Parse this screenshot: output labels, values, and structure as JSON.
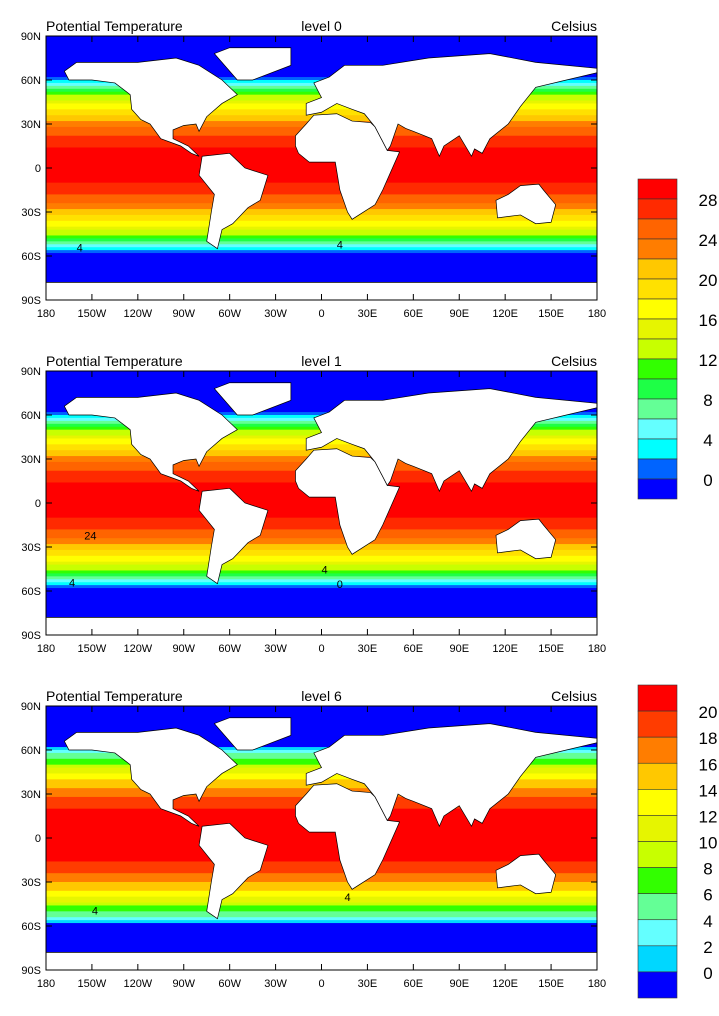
{
  "panels": [
    {
      "left_title": "Potential Temperature",
      "center_title": "level 0",
      "right_title": "Celsius",
      "colorbar": "top",
      "scale": 1.0,
      "contour_labels": [
        "4",
        "4"
      ]
    },
    {
      "left_title": "Potential Temperature",
      "center_title": "level 1",
      "right_title": "Celsius",
      "colorbar": "none",
      "scale": 1.0,
      "contour_labels": [
        "24",
        "4",
        "4",
        "0"
      ]
    },
    {
      "left_title": "Potential Temperature",
      "center_title": "level 6",
      "right_title": "Celsius",
      "colorbar": "bottom",
      "scale": 0.75,
      "contour_labels": [
        "4",
        "4"
      ]
    }
  ],
  "lat_ticks": [
    "90N",
    "60N",
    "30N",
    "0",
    "30S",
    "60S",
    "90S"
  ],
  "lon_ticks": [
    "180",
    "150W",
    "120W",
    "90W",
    "60W",
    "30W",
    "0",
    "30E",
    "60E",
    "90E",
    "120E",
    "150E",
    "180"
  ],
  "colorbar_top": {
    "labels": [
      "28",
      "24",
      "20",
      "16",
      "12",
      "8",
      "4",
      "0"
    ],
    "colors": [
      "#ff0000",
      "#ff2a00",
      "#ff6400",
      "#ff7d00",
      "#ffc800",
      "#ffe100",
      "#ffff00",
      "#e6f500",
      "#c8ff00",
      "#32ff00",
      "#1eff46",
      "#64ff96",
      "#64ffff",
      "#00ffff",
      "#0064ff",
      "#0000ff"
    ]
  },
  "colorbar_bottom": {
    "labels": [
      "20",
      "18",
      "16",
      "14",
      "12",
      "10",
      "8",
      "6",
      "4",
      "2",
      "0"
    ],
    "colors": [
      "#ff0000",
      "#ff3c00",
      "#ff7d00",
      "#ffc800",
      "#ffff00",
      "#e6f500",
      "#c8ff00",
      "#32ff00",
      "#64ff96",
      "#64ffff",
      "#00d7ff",
      "#0000ff"
    ]
  }
}
